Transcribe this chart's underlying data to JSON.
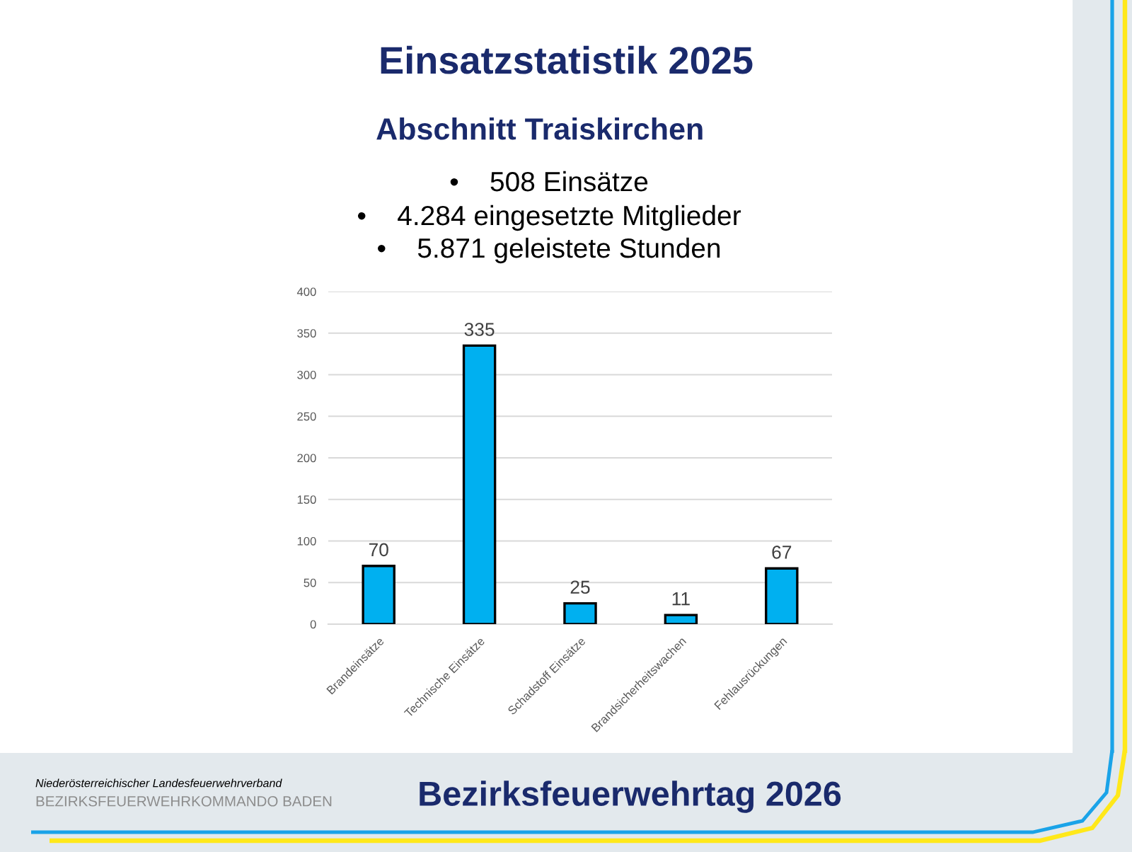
{
  "chart_data": {
    "type": "bar",
    "title": "Einsatzstatistik 2025",
    "subtitle": "Abschnitt Traiskirchen",
    "annotations": [
      "•    508 Einsätze",
      "•    4.284 eingesetzte Mitglieder",
      "•    5.871 geleistete Stunden",
      "Niederösterreichischer Landesfeuerwehrverband",
      "BEZIRKSFEUERWEHRKOMMANDO BADEN",
      "Bezirksfeuerwehrtag 2026"
    ],
    "categories": [
      "Brandeinsätze",
      "Technische Einsätze",
      "Schadstoff Einsätze",
      "Brandsicherheitswachen",
      "Fehlausrückungen"
    ],
    "values": [
      70,
      335,
      25,
      11,
      67
    ],
    "color": "#00b0f0",
    "ylim": [
      0,
      400
    ],
    "yticks": [
      0,
      50,
      100,
      150,
      200,
      250,
      300,
      350,
      400
    ],
    "grid": "y",
    "data_labels": true
  }
}
